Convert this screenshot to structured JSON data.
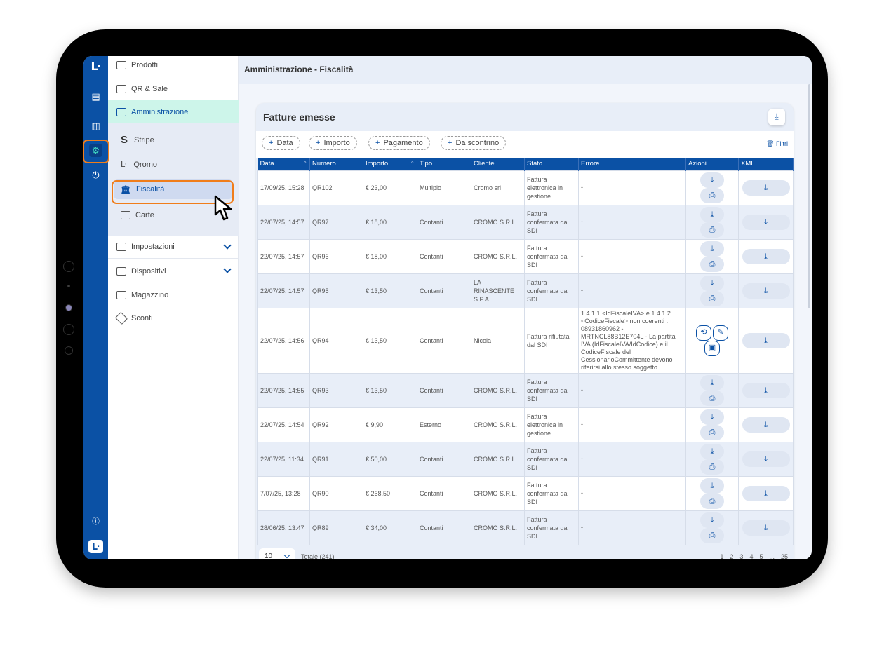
{
  "header": {
    "title": "Amministrazione - Fiscalità"
  },
  "rail": {
    "icons": [
      "logo-icon",
      "receipt-icon",
      "chart-icon",
      "gear-icon",
      "plug-icon",
      "help-icon",
      "app-logo-icon"
    ],
    "accent": "#0b51a5",
    "highlight": "#f07d1a"
  },
  "sidebar": {
    "items": [
      {
        "label": "Prodotti"
      },
      {
        "label": "QR & Sale"
      },
      {
        "label": "Amministrazione",
        "active": true
      },
      {
        "label": "Impostazioni"
      },
      {
        "label": "Dispositivi"
      },
      {
        "label": "Magazzino"
      },
      {
        "label": "Sconti"
      }
    ],
    "subitems": [
      {
        "label": "Stripe"
      },
      {
        "label": "Qromo"
      },
      {
        "label": "Fiscalità",
        "active": true
      },
      {
        "label": "Carte"
      }
    ]
  },
  "card": {
    "title": "Fatture emesse",
    "filters": [
      "Data",
      "Importo",
      "Pagamento",
      "Da scontrino"
    ],
    "clear_filters": "Filtri"
  },
  "table": {
    "columns": [
      "Data",
      "Numero",
      "Importo",
      "Tipo",
      "Cliente",
      "Stato",
      "Errore",
      "Azioni",
      "XML"
    ],
    "rows": [
      {
        "data": "17/09/25, 15:28",
        "numero": "QR102",
        "importo": "€ 23,00",
        "tipo": "Multiplo",
        "cliente": "Cromo srl",
        "stato": "Fattura elettronica in gestione",
        "errore": "-",
        "azioni": "standard"
      },
      {
        "data": "22/07/25, 14:57",
        "numero": "QR97",
        "importo": "€ 18,00",
        "tipo": "Contanti",
        "cliente": "CROMO S.R.L.",
        "stato": "Fattura confermata dal SDI",
        "errore": "-",
        "azioni": "standard"
      },
      {
        "data": "22/07/25, 14:57",
        "numero": "QR96",
        "importo": "€ 18,00",
        "tipo": "Contanti",
        "cliente": "CROMO S.R.L.",
        "stato": "Fattura confermata dal SDI",
        "errore": "-",
        "azioni": "standard"
      },
      {
        "data": "22/07/25, 14:57",
        "numero": "QR95",
        "importo": "€ 13,50",
        "tipo": "Contanti",
        "cliente": "LA RINASCENTE S.P.A.",
        "stato": "Fattura confermata dal SDI",
        "errore": "-",
        "azioni": "standard"
      },
      {
        "data": "22/07/25, 14:56",
        "numero": "QR94",
        "importo": "€ 13,50",
        "tipo": "Contanti",
        "cliente": "Nicola",
        "stato": "Fattura rifiutata dal SDI",
        "errore": "1.4.1.1 <IdFiscaleIVA> e 1.4.1.2 <CodiceFiscale> non coerenti : 08931860962 - MRTNCL88B12E704L - La partita IVA (IdFiscaleIVA/IdCodice) e il CodiceFiscale del CessionarioCommittente devono riferirsi allo stesso soggetto",
        "azioni": "rejected"
      },
      {
        "data": "22/07/25, 14:55",
        "numero": "QR93",
        "importo": "€ 13,50",
        "tipo": "Contanti",
        "cliente": "CROMO S.R.L.",
        "stato": "Fattura confermata dal SDI",
        "errore": "-",
        "azioni": "standard"
      },
      {
        "data": "22/07/25, 14:54",
        "numero": "QR92",
        "importo": "€ 9,90",
        "tipo": "Esterno",
        "cliente": "CROMO S.R.L.",
        "stato": "Fattura elettronica in gestione",
        "errore": "-",
        "azioni": "standard"
      },
      {
        "data": "22/07/25, 11:34",
        "numero": "QR91",
        "importo": "€ 50,00",
        "tipo": "Contanti",
        "cliente": "CROMO S.R.L.",
        "stato": "Fattura confermata dal SDI",
        "errore": "-",
        "azioni": "standard"
      },
      {
        "data": "7/07/25, 13:28",
        "numero": "QR90",
        "importo": "€ 268,50",
        "tipo": "Contanti",
        "cliente": "CROMO S.R.L.",
        "stato": "Fattura confermata dal SDI",
        "errore": "-",
        "azioni": "standard"
      },
      {
        "data": "28/06/25, 13:47",
        "numero": "QR89",
        "importo": "€ 34,00",
        "tipo": "Contanti",
        "cliente": "CROMO S.R.L.",
        "stato": "Fattura confermata dal SDI",
        "errore": "-",
        "azioni": "standard"
      }
    ]
  },
  "footer": {
    "page_size": "10",
    "total": "Totale (241)",
    "pages": [
      "1",
      "2",
      "3",
      "4",
      "5",
      "...",
      "25"
    ],
    "current_page": "1"
  }
}
